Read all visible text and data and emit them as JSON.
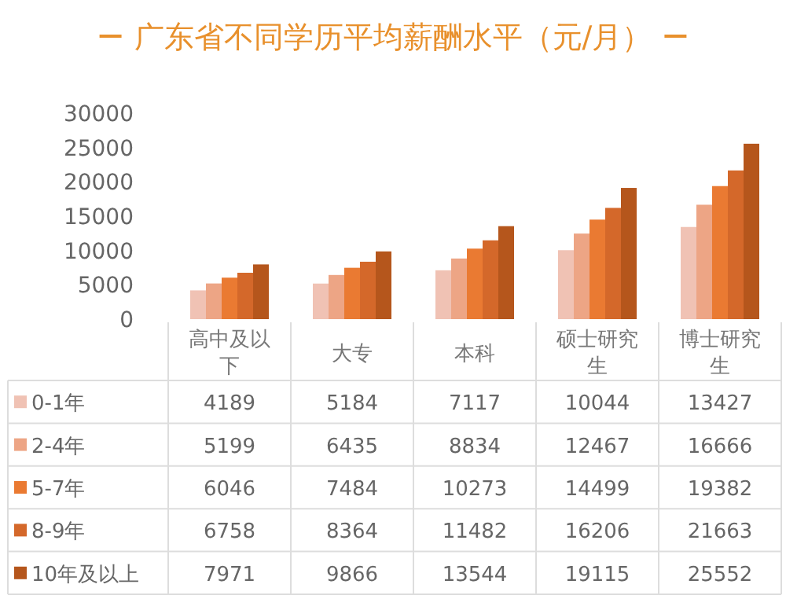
{
  "chart_data": {
    "type": "bar",
    "title": "广东省不同学历平均薪酬水平（元/月）",
    "categories": [
      "高中及以下",
      "大专",
      "本科",
      "硕士研究生",
      "博士研究生"
    ],
    "series": [
      {
        "name": "0-1年",
        "color": "#f0c2b4",
        "values": [
          4189,
          5184,
          7117,
          10044,
          13427
        ]
      },
      {
        "name": "2-4年",
        "color": "#eda585",
        "values": [
          5199,
          6435,
          8834,
          12467,
          16666
        ]
      },
      {
        "name": "5-7年",
        "color": "#ea7a32",
        "values": [
          6046,
          7484,
          10273,
          14499,
          19382
        ]
      },
      {
        "name": "8-9年",
        "color": "#d4682a",
        "values": [
          6758,
          8364,
          11482,
          16206,
          21663
        ]
      },
      {
        "name": "10年及以上",
        "color": "#b5561c",
        "values": [
          7971,
          9866,
          13544,
          19115,
          25552
        ]
      }
    ],
    "ylim": [
      0,
      30000
    ],
    "yticks": [
      0,
      5000,
      10000,
      15000,
      20000,
      25000,
      30000
    ],
    "data_labels": true,
    "legend": "bottom"
  }
}
